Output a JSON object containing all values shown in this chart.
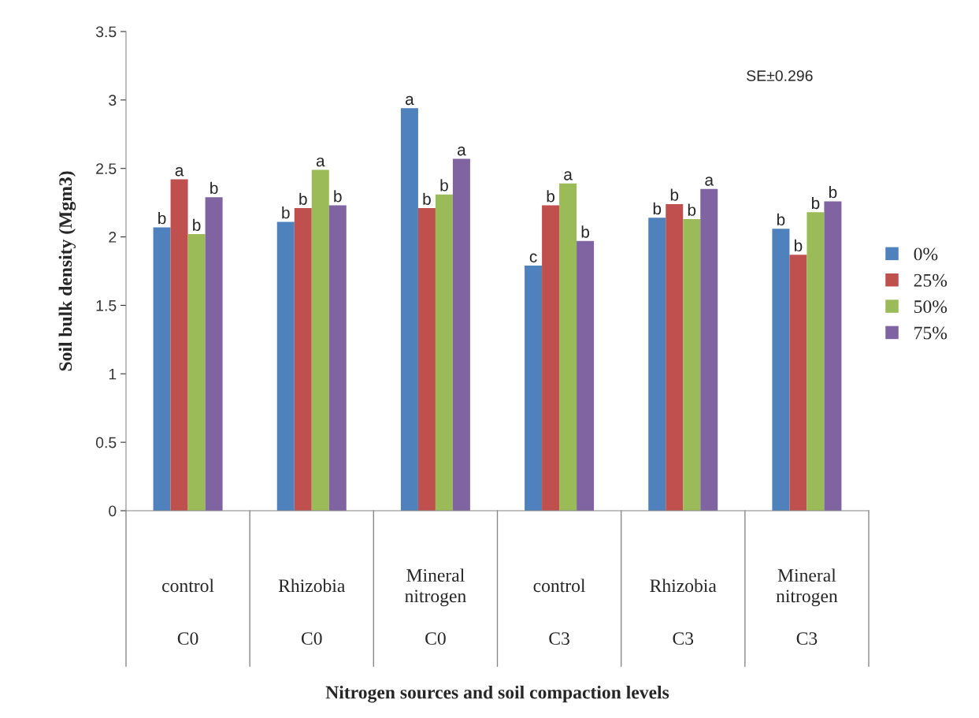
{
  "chart_data": {
    "type": "bar",
    "xlabel": "Nitrogen sources and soil compaction levels",
    "ylabel": "Soil bulk density (Mgm3)",
    "categories": [
      "control",
      "Rhizobia",
      "Mineral nitrogen",
      "control",
      "Rhizobia",
      "Mineral nitrogen"
    ],
    "series": [
      {
        "name": "0%",
        "color": "#4f81bd",
        "values": [
          2.07,
          2.11,
          2.94,
          1.79,
          2.14,
          2.06
        ],
        "value_labels": [
          "b",
          "b",
          "a",
          "c",
          "b",
          "b"
        ]
      },
      {
        "name": "25%",
        "color": "#c0504d",
        "values": [
          2.42,
          2.21,
          2.21,
          2.23,
          2.24,
          1.87
        ],
        "value_labels": [
          "a",
          "b",
          "b",
          "b",
          "b",
          "b"
        ]
      },
      {
        "name": "50%",
        "color": "#9bbb59",
        "values": [
          2.02,
          2.49,
          2.31,
          2.39,
          2.13,
          2.18
        ],
        "value_labels": [
          "b",
          "a",
          "b",
          "a",
          "b",
          "b"
        ]
      },
      {
        "name": "75%",
        "color": "#8064a2",
        "values": [
          2.29,
          2.23,
          2.57,
          1.97,
          2.35,
          2.26
        ],
        "value_labels": [
          "b",
          "b",
          "a",
          "b",
          "a",
          "b"
        ]
      }
    ],
    "annotations": [
      "C0",
      "C0",
      "C0",
      "C3",
      "C3",
      "C3",
      "SE±0.296"
    ],
    "ylim": [
      0,
      3.5
    ],
    "yticks": [
      0,
      0.5,
      1,
      1.5,
      2,
      2.5,
      3,
      3.5
    ],
    "grid": false,
    "legend": "right"
  }
}
